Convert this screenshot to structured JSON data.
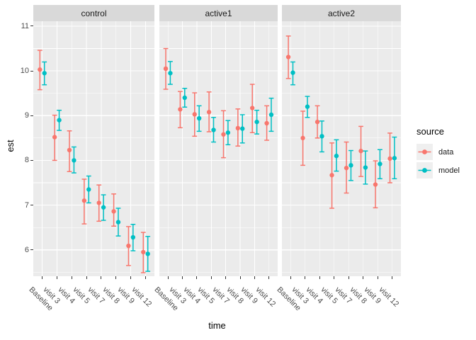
{
  "figure": {
    "xlabel": "time",
    "ylabel": "est"
  },
  "legend": {
    "title": "source",
    "entries": [
      {
        "label": "data",
        "color": "#F8766D"
      },
      {
        "label": "model",
        "color": "#00BFC4"
      }
    ]
  },
  "theme": {
    "panel_bg": "#EBEBEB",
    "grid_color": "#FFFFFF",
    "strip_bg": "#D9D9D9",
    "axis_text_color": "#4D4D4D",
    "title_color": "#000000",
    "tick_color": "#333333",
    "legend_key_bg": "#EFEFEF"
  },
  "chart_data": {
    "type": "pointrange",
    "title": "",
    "xlabel": "time",
    "ylabel": "est",
    "facet_variable_values": [
      "control",
      "active1",
      "active2"
    ],
    "categories": [
      "Baseline",
      "visit 3",
      "visit 4",
      "visit 5",
      "visit 7",
      "visit 8",
      "visit 9",
      "visit 12"
    ],
    "yticks": [
      6,
      7,
      8,
      9,
      10,
      11
    ],
    "ylim": [
      5.41,
      11.11
    ],
    "grid": "major-and-minor",
    "legend_position": "right",
    "series_colors": {
      "data": "#F8766D",
      "model": "#00BFC4"
    },
    "point_format": "[estimate, ci_low, ci_high]",
    "panels": [
      {
        "facet": "control",
        "series": [
          {
            "name": "data",
            "values": [
              [
                10.03,
                9.58,
                10.46
              ],
              [
                8.52,
                8.0,
                9.01
              ],
              [
                8.23,
                7.75,
                8.66
              ],
              [
                7.1,
                6.58,
                7.58
              ],
              [
                7.05,
                6.64,
                7.45
              ],
              [
                6.86,
                6.53,
                7.25
              ],
              [
                6.09,
                5.65,
                6.52
              ],
              [
                5.95,
                5.49,
                6.39
              ]
            ]
          },
          {
            "name": "model",
            "values": [
              [
                9.95,
                9.69,
                10.2
              ],
              [
                8.9,
                8.67,
                9.12
              ],
              [
                8.0,
                7.72,
                8.3
              ],
              [
                7.35,
                7.05,
                7.65
              ],
              [
                6.95,
                6.66,
                7.23
              ],
              [
                6.62,
                6.31,
                6.93
              ],
              [
                6.28,
                5.98,
                6.57
              ],
              [
                5.91,
                5.52,
                6.3
              ]
            ]
          }
        ]
      },
      {
        "facet": "active1",
        "series": [
          {
            "name": "data",
            "values": [
              [
                10.05,
                9.59,
                10.5
              ],
              [
                9.14,
                8.73,
                9.54
              ],
              [
                9.03,
                8.54,
                9.51
              ],
              [
                9.08,
                8.64,
                9.53
              ],
              [
                8.58,
                8.06,
                9.11
              ],
              [
                8.72,
                8.32,
                9.15
              ],
              [
                9.17,
                8.62,
                9.7
              ],
              [
                8.83,
                8.45,
                9.22
              ]
            ]
          },
          {
            "name": "model",
            "values": [
              [
                9.95,
                9.7,
                10.21
              ],
              [
                9.4,
                9.19,
                9.61
              ],
              [
                8.94,
                8.65,
                9.22
              ],
              [
                8.68,
                8.41,
                8.96
              ],
              [
                8.62,
                8.35,
                8.89
              ],
              [
                8.71,
                8.39,
                9.02
              ],
              [
                8.86,
                8.59,
                9.12
              ],
              [
                9.02,
                8.65,
                9.39
              ]
            ]
          }
        ]
      },
      {
        "facet": "active2",
        "series": [
          {
            "name": "data",
            "values": [
              [
                10.31,
                9.83,
                10.78
              ],
              [
                8.5,
                7.89,
                9.1
              ],
              [
                8.86,
                8.5,
                9.22
              ],
              [
                7.67,
                6.93,
                8.39
              ],
              [
                7.83,
                7.27,
                8.41
              ],
              [
                8.21,
                7.64,
                8.76
              ],
              [
                7.46,
                6.94,
                7.99
              ],
              [
                8.04,
                7.5,
                8.61
              ]
            ]
          },
          {
            "name": "model",
            "values": [
              [
                9.96,
                9.69,
                10.2
              ],
              [
                9.2,
                8.96,
                9.43
              ],
              [
                8.54,
                8.19,
                8.88
              ],
              [
                8.1,
                7.76,
                8.46
              ],
              [
                7.89,
                7.55,
                8.22
              ],
              [
                7.84,
                7.47,
                8.21
              ],
              [
                7.92,
                7.59,
                8.24
              ],
              [
                8.05,
                7.59,
                8.52
              ]
            ]
          }
        ]
      }
    ]
  }
}
